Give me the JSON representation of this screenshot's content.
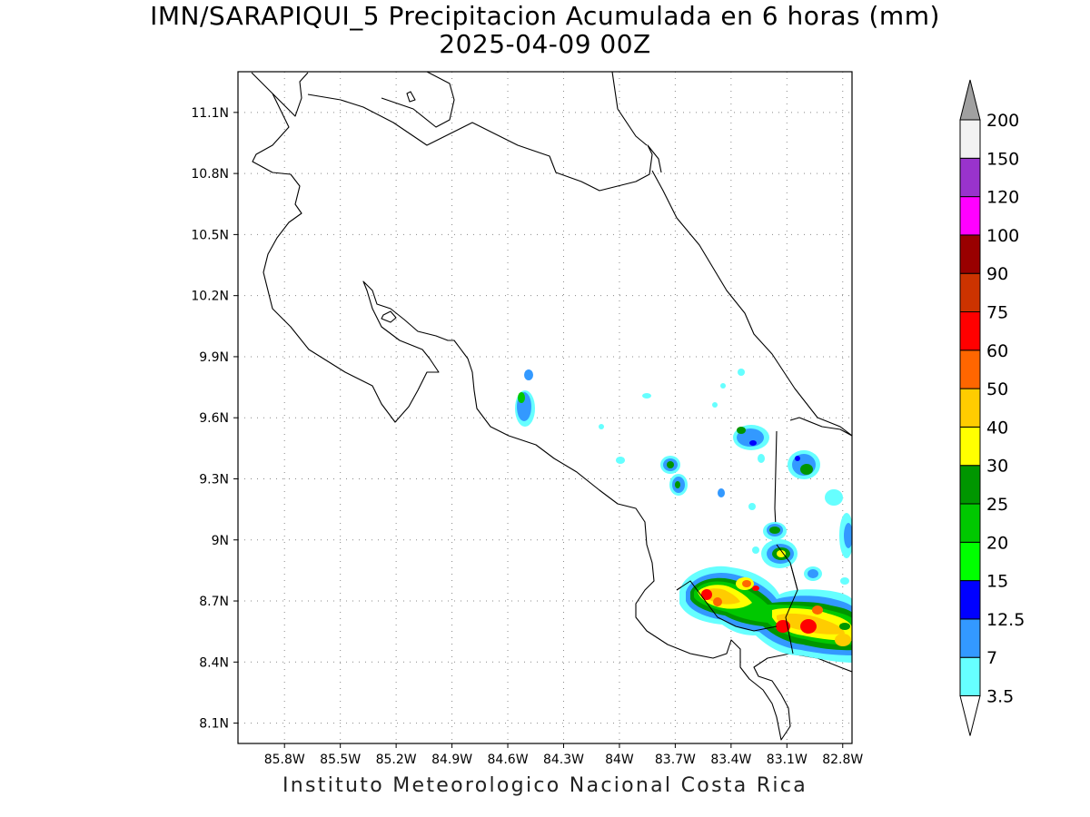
{
  "header": {
    "title": "IMN/SARAPIQUI_5 Precipitacion Acumulada en 6 horas (mm)",
    "subtitle": "2025-04-09 00Z"
  },
  "footer": {
    "credit": "Instituto Meteorologico Nacional Costa Rica"
  },
  "map": {
    "lon_range": [
      -86.05,
      -82.75
    ],
    "lat_range": [
      8.0,
      11.3
    ],
    "lon_ticks": [
      {
        "value": -85.8,
        "label": "85.8W"
      },
      {
        "value": -85.5,
        "label": "85.5W"
      },
      {
        "value": -85.2,
        "label": "85.2W"
      },
      {
        "value": -84.9,
        "label": "84.9W"
      },
      {
        "value": -84.6,
        "label": "84.6W"
      },
      {
        "value": -84.3,
        "label": "84.3W"
      },
      {
        "value": -84.0,
        "label": "84W"
      },
      {
        "value": -83.7,
        "label": "83.7W"
      },
      {
        "value": -83.4,
        "label": "83.4W"
      },
      {
        "value": -83.1,
        "label": "83.1W"
      },
      {
        "value": -82.8,
        "label": "82.8W"
      }
    ],
    "lat_ticks": [
      {
        "value": 8.1,
        "label": "8.1N"
      },
      {
        "value": 8.4,
        "label": "8.4N"
      },
      {
        "value": 8.7,
        "label": "8.7N"
      },
      {
        "value": 9.0,
        "label": "9N"
      },
      {
        "value": 9.3,
        "label": "9.3N"
      },
      {
        "value": 9.6,
        "label": "9.6N"
      },
      {
        "value": 9.9,
        "label": "9.9N"
      },
      {
        "value": 10.2,
        "label": "10.2N"
      },
      {
        "value": 10.5,
        "label": "10.5N"
      },
      {
        "value": 10.8,
        "label": "10.8N"
      },
      {
        "value": 11.1,
        "label": "11.1N"
      }
    ],
    "grid": "dotted",
    "coastline_color": "#000000"
  },
  "colorbar": {
    "levels": [
      {
        "label": "3.5",
        "color": "#66ffff"
      },
      {
        "label": "7",
        "color": "#3399ff"
      },
      {
        "label": "12.5",
        "color": "#0000ff"
      },
      {
        "label": "15",
        "color": "#00ff00"
      },
      {
        "label": "20",
        "color": "#00c800"
      },
      {
        "label": "25",
        "color": "#009600"
      },
      {
        "label": "30",
        "color": "#ffff00"
      },
      {
        "label": "40",
        "color": "#ffcc00"
      },
      {
        "label": "50",
        "color": "#ff6600"
      },
      {
        "label": "60",
        "color": "#ff0000"
      },
      {
        "label": "75",
        "color": "#cc3300"
      },
      {
        "label": "90",
        "color": "#990000"
      },
      {
        "label": "100",
        "color": "#ff00ff"
      },
      {
        "label": "120",
        "color": "#9933cc"
      },
      {
        "label": "150",
        "color": "#f2f2f2"
      },
      {
        "label": "200",
        "color": ""
      }
    ],
    "top_triangle_color": "#a0a0a0",
    "bottom_triangle_color": "#ffffff"
  }
}
